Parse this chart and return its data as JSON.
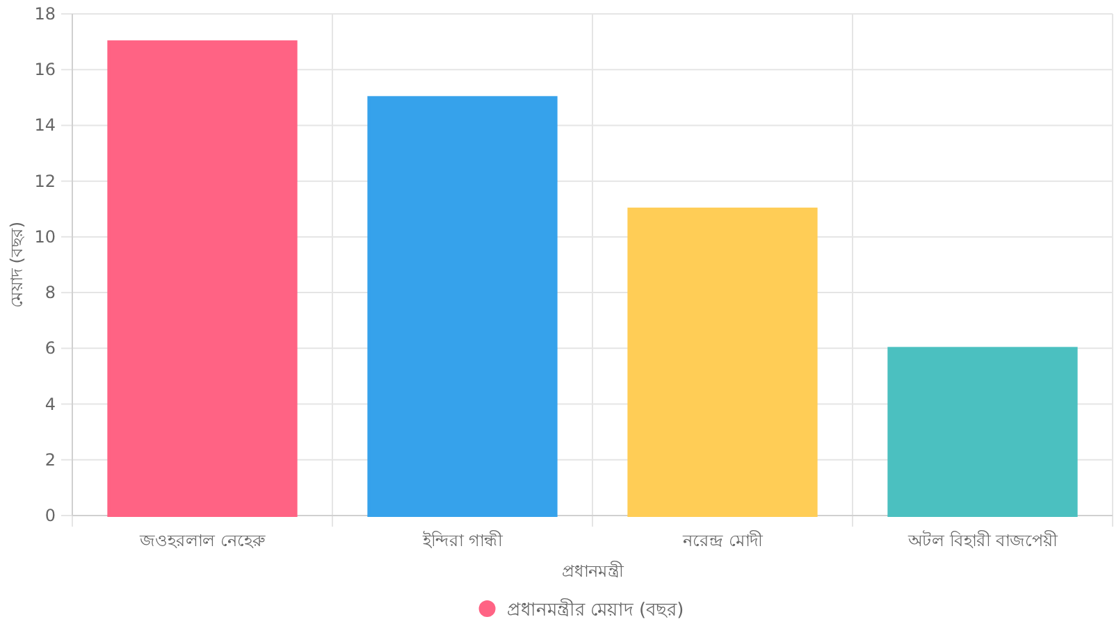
{
  "chart_data": {
    "type": "bar",
    "xlabel": "প্রধানমন্ত্রী",
    "ylabel": "মেয়াদ (বছর)",
    "categories": [
      "জওহরলাল নেহেরু",
      "ইন্দিরা গান্ধী",
      "নরেন্দ্র মোদী",
      "অটল বিহারী বাজপেয়ী"
    ],
    "series": [
      {
        "name": "প্রধানমন্ত্রীর মেয়াদ (বছর)",
        "colors": [
          "#ff6384",
          "#36a2eb",
          "#ffcd56",
          "#4bc0c0"
        ],
        "values": [
          17,
          15,
          11,
          6
        ]
      }
    ],
    "ylim": [
      0,
      18
    ],
    "yticks": [
      0,
      2,
      4,
      6,
      8,
      10,
      12,
      14,
      16,
      18
    ],
    "grid": true,
    "legend": "bottom"
  }
}
